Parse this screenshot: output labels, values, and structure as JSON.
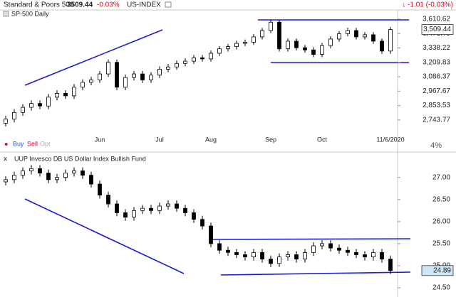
{
  "header": {
    "symbol_name": "Standard & Poors 500",
    "quote": "3509.44",
    "change_pct": "-0.03%",
    "exchange": "US-INDEX",
    "change_full": "↓ -1.01 (-0.03%)",
    "panel_label": "SP-500 Daily",
    "buy": "Buy",
    "sell": "Sell",
    "opt": "Opt",
    "close_icon": "x"
  },
  "chart_data": [
    {
      "type": "candlestick",
      "title": "SP-500 Daily",
      "log_scale": true,
      "up_color": "#ffffff",
      "down_color": "#000000",
      "outline_color": "#000000",
      "scale_note": "4%",
      "categories": [
        null,
        null,
        null,
        null,
        null,
        null,
        null,
        null,
        null,
        null,
        null,
        "Jun",
        null,
        null,
        null,
        null,
        null,
        null,
        "Jul",
        null,
        null,
        null,
        null,
        null,
        "Aug",
        null,
        null,
        null,
        null,
        null,
        null,
        "Sep",
        null,
        null,
        null,
        null,
        null,
        "Oct",
        null,
        null,
        null,
        null,
        null,
        null,
        null,
        "11/6/2020"
      ],
      "open": [
        2720,
        2750,
        2800,
        2840,
        2870,
        2850,
        2920,
        2950,
        2930,
        3000,
        3040,
        3060,
        3110,
        3210,
        3000,
        3080,
        3110,
        3060,
        3100,
        3150,
        3170,
        3200,
        3220,
        3250,
        3240,
        3290,
        3330,
        3350,
        3380,
        3390,
        3440,
        3500,
        3580,
        3330,
        3400,
        3340,
        3320,
        3280,
        3360,
        3420,
        3470,
        3500,
        3440,
        3460,
        3400,
        3310
      ],
      "high": [
        2775,
        2825,
        2865,
        2895,
        2895,
        2945,
        2975,
        2975,
        3025,
        3065,
        3085,
        3135,
        3235,
        3235,
        3105,
        3135,
        3135,
        3125,
        3175,
        3195,
        3225,
        3245,
        3275,
        3275,
        3315,
        3355,
        3375,
        3405,
        3415,
        3465,
        3525,
        3605,
        3605,
        3425,
        3425,
        3365,
        3345,
        3385,
        3445,
        3495,
        3525,
        3525,
        3485,
        3485,
        3425,
        3534
      ],
      "low": [
        2695,
        2725,
        2775,
        2815,
        2825,
        2825,
        2895,
        2905,
        2905,
        2975,
        3015,
        3035,
        3085,
        2975,
        2975,
        3055,
        3035,
        3035,
        3075,
        3125,
        3145,
        3175,
        3195,
        3215,
        3215,
        3265,
        3305,
        3325,
        3355,
        3365,
        3415,
        3475,
        3305,
        3305,
        3315,
        3295,
        3255,
        3255,
        3335,
        3395,
        3445,
        3415,
        3415,
        3375,
        3285,
        3285
      ],
      "close": [
        2750,
        2800,
        2840,
        2870,
        2850,
        2920,
        2950,
        2930,
        3000,
        3040,
        3060,
        3110,
        3210,
        3000,
        3080,
        3110,
        3060,
        3100,
        3150,
        3170,
        3200,
        3220,
        3250,
        3240,
        3290,
        3330,
        3350,
        3380,
        3390,
        3440,
        3500,
        3580,
        3330,
        3400,
        3340,
        3320,
        3280,
        3360,
        3420,
        3470,
        3500,
        3440,
        3460,
        3400,
        3310,
        3509.44
      ],
      "ylim": [
        2634,
        3673
      ],
      "yticks": [
        {
          "value": 2743.77,
          "label": "2,743.77"
        },
        {
          "value": 2853.53,
          "label": "2,853.53"
        },
        {
          "value": 2967.67,
          "label": "2,967.67"
        },
        {
          "value": 3086.37,
          "label": "3,086.37"
        },
        {
          "value": 3209.83,
          "label": "3,209.83"
        },
        {
          "value": 3338.22,
          "label": "3,338.22"
        },
        {
          "value": 3471.75,
          "label": "3,471.75"
        },
        {
          "value": 3610.62,
          "label": "3,610.62"
        }
      ],
      "last_price": {
        "value": 3509.44,
        "label": "3,509.44"
      },
      "last_box_color": "#ffffff"
    },
    {
      "type": "candlestick",
      "title": "UUP Invesco DB US Dollar Index Bullish Fund",
      "log_scale": false,
      "up_color": "#ffffff",
      "down_color": "#000000",
      "outline_color": "#000000",
      "categories": [
        null,
        null,
        null,
        null,
        null,
        null,
        null,
        null,
        null,
        null,
        null,
        null,
        null,
        null,
        null,
        null,
        null,
        null,
        null,
        null,
        null,
        null,
        null,
        null,
        null,
        null,
        null,
        null,
        null,
        null,
        null,
        null,
        null,
        null,
        null,
        null,
        null,
        null,
        null,
        null,
        null,
        null,
        null,
        null,
        null,
        null
      ],
      "open": [
        26.9,
        26.95,
        27.05,
        27.15,
        27.2,
        27.1,
        26.95,
        27.0,
        27.1,
        27.15,
        27.05,
        26.85,
        26.6,
        26.4,
        26.2,
        26.1,
        26.25,
        26.3,
        26.25,
        26.35,
        26.4,
        26.3,
        26.2,
        26.05,
        25.9,
        25.5,
        25.35,
        25.3,
        25.25,
        25.2,
        25.3,
        25.15,
        25.05,
        25.2,
        25.25,
        25.15,
        25.3,
        25.45,
        25.5,
        25.4,
        25.35,
        25.3,
        25.25,
        25.2,
        25.3,
        25.15
      ],
      "high": [
        27.03,
        27.13,
        27.23,
        27.28,
        27.28,
        27.18,
        27.08,
        27.18,
        27.23,
        27.23,
        27.13,
        26.93,
        26.68,
        26.48,
        26.28,
        26.33,
        26.38,
        26.38,
        26.43,
        26.48,
        26.48,
        26.38,
        26.28,
        26.13,
        25.98,
        25.58,
        25.43,
        25.38,
        25.33,
        25.38,
        25.38,
        25.23,
        25.28,
        25.33,
        25.33,
        25.38,
        25.53,
        25.58,
        25.58,
        25.48,
        25.43,
        25.38,
        25.33,
        25.38,
        25.38,
        25.23
      ],
      "low": [
        26.82,
        26.87,
        26.97,
        27.07,
        27.02,
        26.87,
        26.87,
        26.92,
        27.02,
        26.97,
        26.77,
        26.52,
        26.32,
        26.12,
        26.02,
        26.02,
        26.17,
        26.17,
        26.17,
        26.27,
        26.22,
        26.12,
        25.97,
        25.82,
        25.42,
        25.27,
        25.22,
        25.17,
        25.12,
        25.12,
        25.07,
        24.97,
        24.97,
        25.12,
        25.07,
        25.07,
        25.22,
        25.37,
        25.32,
        25.27,
        25.22,
        25.17,
        25.12,
        25.12,
        25.07,
        24.81
      ],
      "close": [
        26.95,
        27.05,
        27.15,
        27.2,
        27.1,
        26.95,
        27.0,
        27.1,
        27.15,
        27.05,
        26.85,
        26.6,
        26.4,
        26.2,
        26.1,
        26.25,
        26.3,
        26.25,
        26.35,
        26.4,
        26.3,
        26.2,
        26.05,
        25.9,
        25.5,
        25.35,
        25.3,
        25.25,
        25.2,
        25.3,
        25.15,
        25.05,
        25.2,
        25.25,
        25.15,
        25.3,
        25.45,
        25.5,
        25.4,
        25.35,
        25.3,
        25.25,
        25.2,
        25.3,
        25.15,
        24.89
      ],
      "ylim": [
        24.42,
        27.35
      ],
      "yticks": [
        {
          "value": 24.5,
          "label": "24.50"
        },
        {
          "value": 25,
          "label": "25.00"
        },
        {
          "value": 25.5,
          "label": "25.50"
        },
        {
          "value": 26,
          "label": "26.00"
        },
        {
          "value": 26.5,
          "label": "26.50"
        },
        {
          "value": 27,
          "label": "27.00"
        }
      ],
      "last_price": 24.89,
      "last_box_color": "#cfe6f7"
    }
  ]
}
